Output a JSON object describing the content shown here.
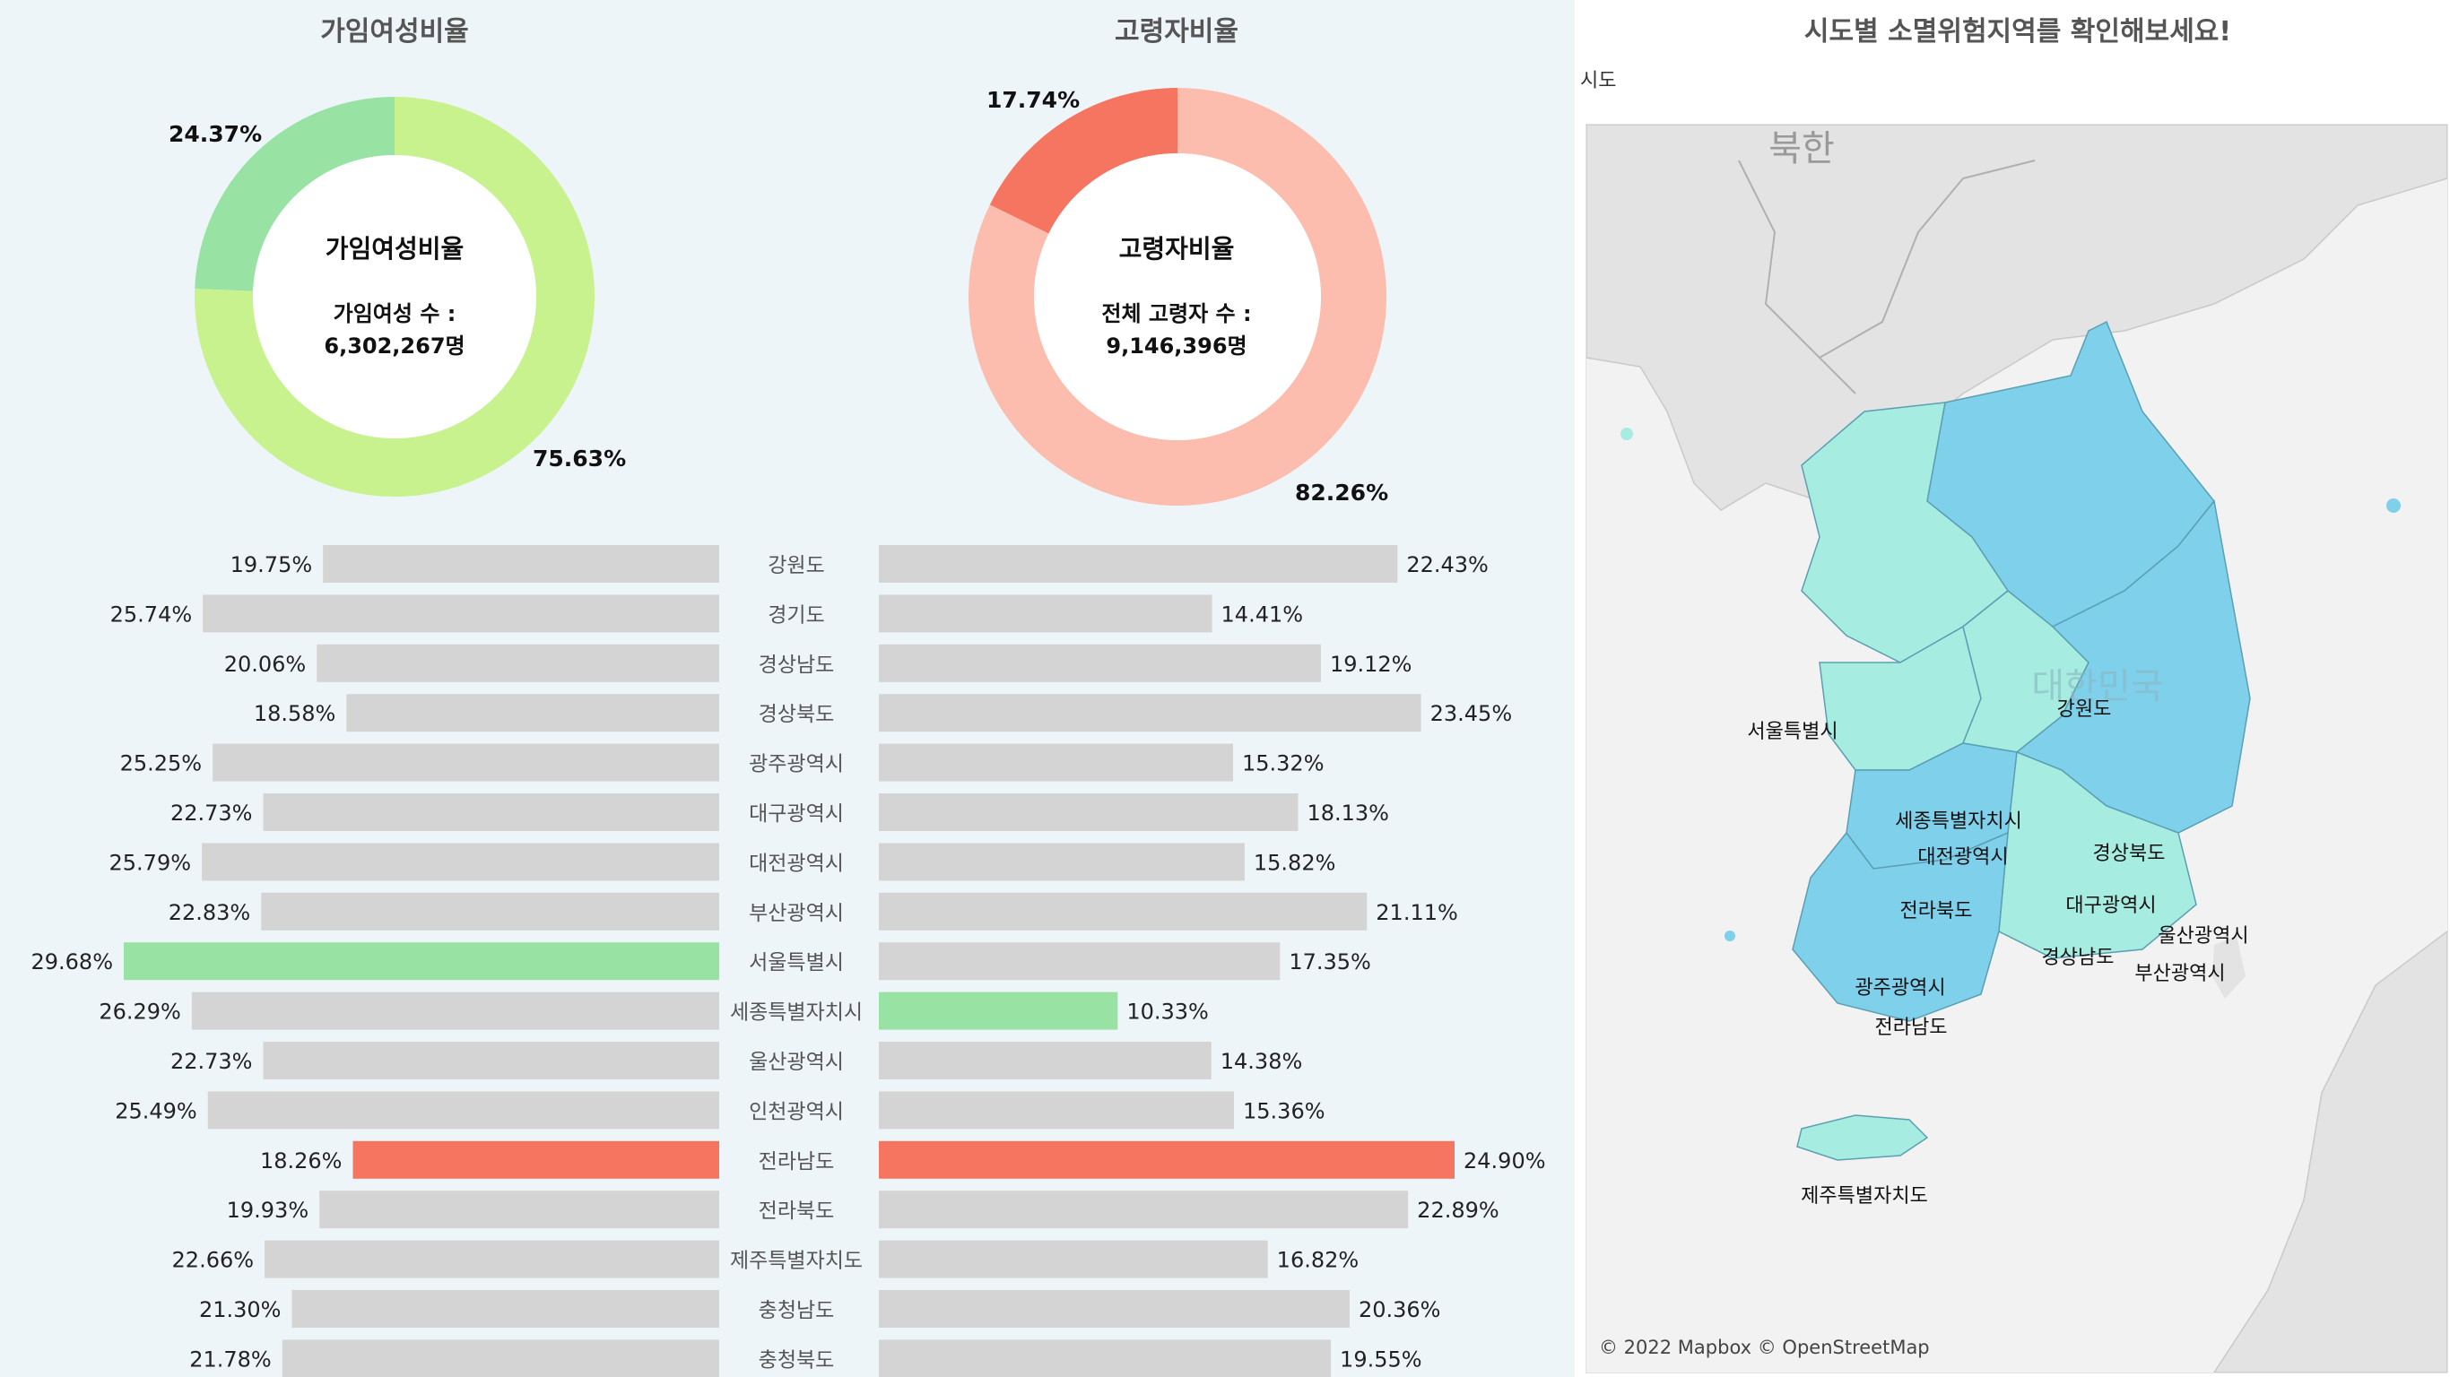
{
  "left_titles": {
    "women": "가임여성비율",
    "elderly": "고령자비율"
  },
  "donut_women": {
    "center_title": "가임여성비율",
    "center_line1": "가임여성 수 :",
    "center_line2": "6,302,267명",
    "slice_small_label": "24.37%",
    "slice_large_label": "75.63%"
  },
  "donut_elderly": {
    "center_title": "고령자비율",
    "center_line1": "전체 고령자 수 :",
    "center_line2": "9,146,396명",
    "slice_small_label": "17.74%",
    "slice_large_label": "82.26%"
  },
  "map": {
    "title": "시도별 소멸위험지역를 확인해보세요!",
    "filter_label": "시도",
    "credit": "© 2022 Mapbox © OpenStreetMap",
    "background_labels": [
      "북한",
      "대한민국"
    ],
    "regions": [
      {
        "name": "서울특별시",
        "risk": "low"
      },
      {
        "name": "강원도",
        "risk": "high"
      },
      {
        "name": "세종특별자치시",
        "risk": "low"
      },
      {
        "name": "대전광역시",
        "risk": "low"
      },
      {
        "name": "경상북도",
        "risk": "high"
      },
      {
        "name": "대구광역시",
        "risk": "high"
      },
      {
        "name": "울산광역시",
        "risk": "low"
      },
      {
        "name": "전라북도",
        "risk": "high"
      },
      {
        "name": "경상남도",
        "risk": "low"
      },
      {
        "name": "부산광역시",
        "risk": "low"
      },
      {
        "name": "광주광역시",
        "risk": "high"
      },
      {
        "name": "전라남도",
        "risk": "high"
      },
      {
        "name": "제주특별자치도",
        "risk": "low"
      }
    ],
    "colors": {
      "high": "#7fd0ea",
      "low": "#a6ece1",
      "land": "#e0e0e0"
    }
  },
  "chart_data": [
    {
      "type": "pie",
      "title": "가임여성비율",
      "slices": [
        {
          "label": "24.37%",
          "value": 24.37,
          "color": "#98e3a4"
        },
        {
          "label": "75.63%",
          "value": 75.63,
          "color": "#c8f28e"
        }
      ]
    },
    {
      "type": "pie",
      "title": "고령자비율",
      "slices": [
        {
          "label": "17.74%",
          "value": 17.74,
          "color": "#f57560"
        },
        {
          "label": "82.26%",
          "value": 82.26,
          "color": "#fcbcae"
        }
      ]
    },
    {
      "type": "bar",
      "orientation": "horizontal",
      "title": "",
      "categories": [
        "강원도",
        "경기도",
        "경상남도",
        "경상북도",
        "광주광역시",
        "대구광역시",
        "대전광역시",
        "부산광역시",
        "서울특별시",
        "세종특별자치시",
        "울산광역시",
        "인천광역시",
        "전라남도",
        "전라북도",
        "제주특별자치도",
        "충청남도",
        "충청북도"
      ],
      "series": [
        {
          "values": [
            19.75,
            25.74,
            20.06,
            18.58,
            25.25,
            22.73,
            25.79,
            22.83,
            29.68,
            26.29,
            22.73,
            25.49,
            18.26,
            19.93,
            22.66,
            21.3,
            21.78
          ]
        },
        {
          "values": [
            22.43,
            14.41,
            19.12,
            23.45,
            15.32,
            18.13,
            15.82,
            21.11,
            17.35,
            10.33,
            14.38,
            15.36,
            24.9,
            22.89,
            16.82,
            20.36,
            19.55
          ]
        }
      ],
      "highlight": {
        "max": "#98e3a4",
        "min": "#f57560",
        "default": "#d4d4d4",
        "max_index_series1": 8,
        "min_index_series1": 12,
        "max_index_series2": 12,
        "min_index_series2": 9,
        "series2_min_color": "#98e3a4",
        "series2_max_color": "#f57560"
      }
    }
  ]
}
